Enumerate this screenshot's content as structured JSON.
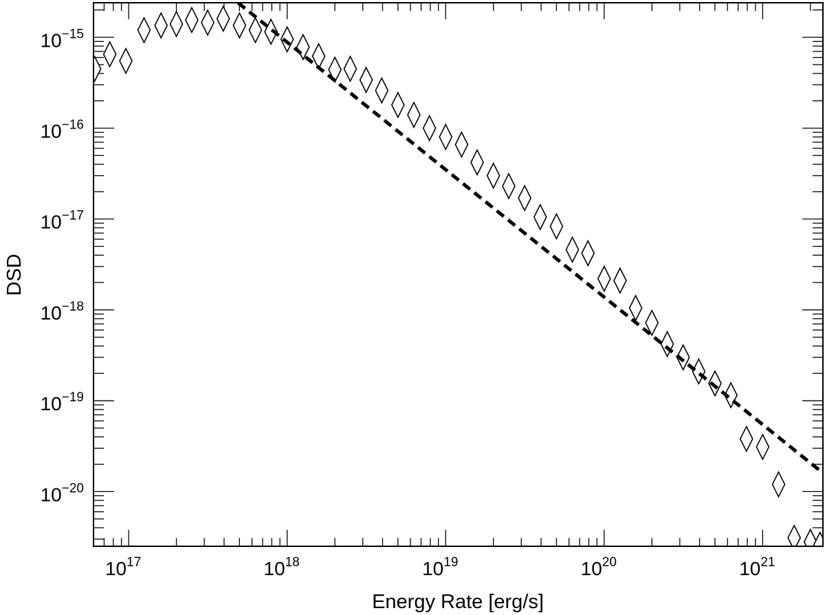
{
  "chart_data": {
    "type": "scatter",
    "title": "",
    "xlabel": "Energy Rate [erg/s]",
    "ylabel": "DSD",
    "x_scale": "log",
    "y_scale": "log",
    "xlim": [
      6e+16,
      2.4e+21
    ],
    "ylim": [
      2.5e-21,
      2.4e-15
    ],
    "grid": false,
    "x_ticks": [
      {
        "value": 1e+17,
        "base": "10",
        "exp": "17"
      },
      {
        "value": 1e+18,
        "base": "10",
        "exp": "18"
      },
      {
        "value": 1e+19,
        "base": "10",
        "exp": "19"
      },
      {
        "value": 1e+20,
        "base": "10",
        "exp": "20"
      },
      {
        "value": 1e+21,
        "base": "10",
        "exp": "21"
      }
    ],
    "y_ticks": [
      {
        "value": 1e-15,
        "base": "10",
        "exp": "−15"
      },
      {
        "value": 1e-16,
        "base": "10",
        "exp": "−16"
      },
      {
        "value": 1e-17,
        "base": "10",
        "exp": "−17"
      },
      {
        "value": 1e-18,
        "base": "10",
        "exp": "−18"
      },
      {
        "value": 1e-19,
        "base": "10",
        "exp": "−19"
      },
      {
        "value": 1e-20,
        "base": "10",
        "exp": "−20"
      }
    ],
    "series": [
      {
        "marker": "diamond-open",
        "x": [
          6.1e+16,
          7.6e+16,
          9.6e+16,
          1.25e+17,
          1.6e+17,
          2e+17,
          2.5e+17,
          3.15e+17,
          3.95e+17,
          5e+17,
          6.3e+17,
          7.9e+17,
          1e+18,
          1.26e+18,
          1.58e+18,
          2e+18,
          2.5e+18,
          3.15e+18,
          3.95e+18,
          5e+18,
          6.3e+18,
          7.9e+18,
          1e+19,
          1.26e+19,
          1.58e+19,
          2e+19,
          2.5e+19,
          3.15e+19,
          3.95e+19,
          5e+19,
          6.3e+19,
          7.9e+19,
          1e+20,
          1.26e+20,
          1.58e+20,
          2e+20,
          2.5e+20,
          3.15e+20,
          3.95e+20,
          5e+20,
          6.3e+20,
          7.9e+20,
          1e+21,
          1.26e+21,
          1.58e+21,
          2e+21,
          2.3e+21
        ],
        "y": [
          4.5e-16,
          6.5e-16,
          5.5e-16,
          1.2e-15,
          1.35e-15,
          1.4e-15,
          1.55e-15,
          1.45e-15,
          1.6e-15,
          1.35e-15,
          1.2e-15,
          1.15e-15,
          9.5e-16,
          7.8e-16,
          6.2e-16,
          4.4e-16,
          4.5e-16,
          3.4e-16,
          2.6e-16,
          1.8e-16,
          1.4e-16,
          1e-16,
          8e-17,
          6.6e-17,
          4.2e-17,
          3e-17,
          2.3e-17,
          1.7e-17,
          1.05e-17,
          8.3e-18,
          4.6e-18,
          4.2e-18,
          2.2e-18,
          2.1e-18,
          1.05e-18,
          7.2e-19,
          4.2e-19,
          3e-19,
          2.1e-19,
          1.55e-19,
          1.15e-19,
          3.8e-20,
          3.1e-20,
          1.2e-20,
          3.1e-21,
          2.8e-21,
          2.6e-21
        ]
      },
      {
        "line_style": "dashed",
        "x": [
          4.9e+17,
          2.35e+21
        ],
        "y": [
          2.4e-15,
          1.65e-20
        ]
      }
    ]
  }
}
